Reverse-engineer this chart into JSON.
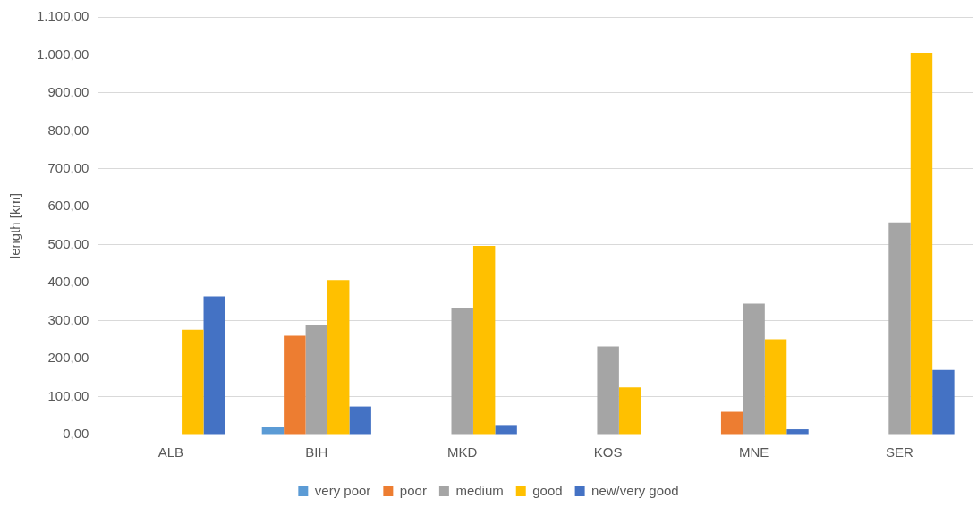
{
  "chart_data": {
    "type": "bar",
    "ylabel": "length [km]",
    "categories": [
      "ALB",
      "BIH",
      "MKD",
      "KOS",
      "MNE",
      "SER"
    ],
    "series": [
      {
        "name": "very poor",
        "color": "#5b9bd5",
        "values": [
          null,
          21,
          null,
          null,
          null,
          null
        ]
      },
      {
        "name": "poor",
        "color": "#ed7d31",
        "values": [
          null,
          260,
          null,
          null,
          60,
          null
        ]
      },
      {
        "name": "medium",
        "color": "#a5a5a5",
        "values": [
          null,
          288,
          334,
          232,
          345,
          559
        ]
      },
      {
        "name": "good",
        "color": "#ffc000",
        "values": [
          276,
          407,
          497,
          124,
          251,
          1006
        ]
      },
      {
        "name": "new/very good",
        "color": "#4472c4",
        "values": [
          364,
          74,
          25,
          null,
          14,
          170
        ]
      }
    ],
    "ylim": [
      0,
      1100
    ],
    "yticks": [
      {
        "value": 0,
        "label": "0,00"
      },
      {
        "value": 100,
        "label": "100,00"
      },
      {
        "value": 200,
        "label": "200,00"
      },
      {
        "value": 300,
        "label": "300,00"
      },
      {
        "value": 400,
        "label": "400,00"
      },
      {
        "value": 500,
        "label": "500,00"
      },
      {
        "value": 600,
        "label": "600,00"
      },
      {
        "value": 700,
        "label": "700,00"
      },
      {
        "value": 800,
        "label": "800,00"
      },
      {
        "value": 900,
        "label": "900,00"
      },
      {
        "value": 1000,
        "label": "1.000,00"
      },
      {
        "value": 1100,
        "label": "1.100,00"
      }
    ],
    "grid": "y",
    "legend": "bottom"
  }
}
